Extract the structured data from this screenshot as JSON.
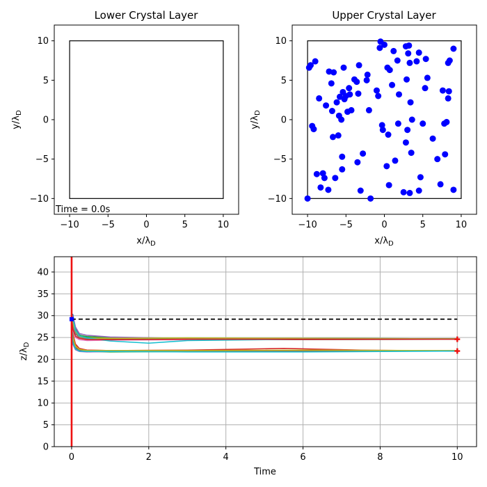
{
  "chart_data": [
    {
      "type": "scatter",
      "title": "Lower Crystal Layer",
      "xlabel": "x/λ",
      "xlabel_sub": "D",
      "ylabel": "y/λ",
      "ylabel_sub": "D",
      "xlim": [
        -12,
        12
      ],
      "ylim": [
        -12,
        12
      ],
      "xticks": [
        -10,
        -5,
        0,
        5,
        10
      ],
      "yticks": [
        -10,
        -5,
        0,
        5,
        10
      ],
      "box": [
        -10,
        10
      ],
      "annotation": "Time = 0.0s",
      "points": []
    },
    {
      "type": "scatter",
      "title": "Upper Crystal Layer",
      "xlabel": "x/λ",
      "xlabel_sub": "D",
      "ylabel": "y/λ",
      "ylabel_sub": "D",
      "xlim": [
        -12,
        12
      ],
      "ylim": [
        -12,
        12
      ],
      "xticks": [
        -10,
        -5,
        0,
        5,
        10
      ],
      "yticks": [
        -10,
        -5,
        0,
        5,
        10
      ],
      "box": [
        -10,
        10
      ],
      "marker_color": "#0000ff",
      "points": [
        [
          -10.0,
          -10.0
        ],
        [
          -9.8,
          6.6
        ],
        [
          -9.6,
          6.9
        ],
        [
          -9.4,
          -0.8
        ],
        [
          -9.2,
          -1.2
        ],
        [
          -9.0,
          7.4
        ],
        [
          -8.8,
          -6.9
        ],
        [
          -8.5,
          2.7
        ],
        [
          -8.3,
          -8.6
        ],
        [
          -8.0,
          -6.8
        ],
        [
          -7.8,
          -7.4
        ],
        [
          -7.6,
          1.8
        ],
        [
          -7.3,
          -8.9
        ],
        [
          -7.2,
          6.1
        ],
        [
          -6.9,
          4.6
        ],
        [
          -6.8,
          1.1
        ],
        [
          -6.7,
          -2.2
        ],
        [
          -6.6,
          6.0
        ],
        [
          -6.4,
          -7.4
        ],
        [
          -6.2,
          2.2
        ],
        [
          -6.0,
          -2.0
        ],
        [
          -5.9,
          0.5
        ],
        [
          -5.8,
          2.9
        ],
        [
          -5.6,
          0.0
        ],
        [
          -5.5,
          -6.3
        ],
        [
          -5.5,
          -4.7
        ],
        [
          -5.4,
          3.5
        ],
        [
          -5.3,
          6.6
        ],
        [
          -5.2,
          2.6
        ],
        [
          -5.0,
          3.0
        ],
        [
          -4.8,
          1.0
        ],
        [
          -4.6,
          4.0
        ],
        [
          -4.5,
          3.2
        ],
        [
          -4.3,
          1.2
        ],
        [
          -3.9,
          5.1
        ],
        [
          -3.6,
          4.8
        ],
        [
          -3.5,
          -5.4
        ],
        [
          -3.4,
          3.3
        ],
        [
          -3.3,
          6.9
        ],
        [
          -3.1,
          -9.0
        ],
        [
          -2.8,
          -4.3
        ],
        [
          -2.3,
          5.0
        ],
        [
          -2.2,
          5.7
        ],
        [
          -2.0,
          1.2
        ],
        [
          -1.8,
          -10.0
        ],
        [
          -1.0,
          3.7
        ],
        [
          -0.8,
          3.0
        ],
        [
          -0.6,
          9.1
        ],
        [
          -0.5,
          9.9
        ],
        [
          -0.3,
          -0.7
        ],
        [
          -0.2,
          -1.3
        ],
        [
          0.0,
          9.5
        ],
        [
          0.3,
          -5.9
        ],
        [
          0.4,
          6.6
        ],
        [
          0.5,
          -1.9
        ],
        [
          0.6,
          -8.3
        ],
        [
          0.7,
          6.3
        ],
        [
          1.0,
          4.4
        ],
        [
          1.2,
          8.7
        ],
        [
          1.4,
          -5.2
        ],
        [
          1.7,
          7.5
        ],
        [
          1.8,
          -0.5
        ],
        [
          1.9,
          3.2
        ],
        [
          2.5,
          -9.2
        ],
        [
          2.8,
          9.3
        ],
        [
          2.8,
          -2.9
        ],
        [
          2.9,
          5.1
        ],
        [
          3.0,
          -1.3
        ],
        [
          3.1,
          8.4
        ],
        [
          3.2,
          9.4
        ],
        [
          3.3,
          -9.3
        ],
        [
          3.3,
          7.2
        ],
        [
          3.4,
          2.2
        ],
        [
          3.5,
          -4.2
        ],
        [
          3.6,
          0.0
        ],
        [
          4.2,
          7.4
        ],
        [
          4.5,
          -9.0
        ],
        [
          4.5,
          8.5
        ],
        [
          4.7,
          -7.3
        ],
        [
          5.0,
          -0.5
        ],
        [
          5.3,
          4.0
        ],
        [
          5.4,
          7.7
        ],
        [
          5.6,
          5.3
        ],
        [
          6.3,
          -2.4
        ],
        [
          6.9,
          -5.0
        ],
        [
          7.3,
          -8.2
        ],
        [
          7.6,
          3.7
        ],
        [
          7.8,
          -0.5
        ],
        [
          7.9,
          -4.4
        ],
        [
          8.1,
          -0.3
        ],
        [
          8.3,
          7.2
        ],
        [
          8.3,
          2.7
        ],
        [
          8.4,
          3.6
        ],
        [
          8.5,
          7.5
        ],
        [
          9.0,
          9.0
        ],
        [
          9.0,
          -8.9
        ]
      ]
    },
    {
      "type": "line",
      "xlabel": "Time",
      "ylabel": "z/λ",
      "ylabel_sub": "D",
      "xlim": [
        -0.45,
        10.5
      ],
      "ylim": [
        0,
        43.5
      ],
      "xticks": [
        0,
        2,
        4,
        6,
        8,
        10
      ],
      "yticks": [
        0,
        5,
        10,
        15,
        20,
        25,
        30,
        35,
        40
      ],
      "grid": true,
      "reference_line": {
        "y": 29.2,
        "x": [
          0,
          10
        ],
        "style": "dashed",
        "color": "#000000"
      },
      "time_marker": {
        "x": 0,
        "color": "#ee1111"
      },
      "start_marker": {
        "x": 0,
        "y": 29.2,
        "color": "#0000ff"
      },
      "end_markers": [
        {
          "x": 10,
          "y": 24.6
        },
        {
          "x": 10,
          "y": 21.9
        }
      ],
      "end_marker_color": "#ee1111",
      "upper_series": [
        {
          "color": "#1f77b4",
          "values": [
            [
              0,
              29.2
            ],
            [
              0.03,
              30.3
            ],
            [
              0.1,
              27.2
            ],
            [
              0.2,
              25.6
            ],
            [
              0.4,
              25.0
            ],
            [
              1,
              24.8
            ],
            [
              3,
              24.6
            ],
            [
              6,
              24.6
            ],
            [
              10,
              24.6
            ]
          ]
        },
        {
          "color": "#ff7f0e",
          "values": [
            [
              0,
              29.2
            ],
            [
              0.03,
              27.8
            ],
            [
              0.1,
              26.5
            ],
            [
              0.2,
              25.3
            ],
            [
              0.4,
              24.8
            ],
            [
              1,
              24.5
            ],
            [
              3,
              24.6
            ],
            [
              6,
              24.7
            ],
            [
              10,
              24.7
            ]
          ]
        },
        {
          "color": "#2ca02c",
          "values": [
            [
              0,
              29.2
            ],
            [
              0.03,
              28.9
            ],
            [
              0.1,
              26.9
            ],
            [
              0.2,
              25.5
            ],
            [
              0.4,
              25.2
            ],
            [
              1,
              25.0
            ],
            [
              3,
              24.8
            ],
            [
              6,
              24.8
            ],
            [
              10,
              24.7
            ]
          ]
        },
        {
          "color": "#9467bd",
          "values": [
            [
              0,
              29.2
            ],
            [
              0.03,
              29.9
            ],
            [
              0.1,
              27.4
            ],
            [
              0.2,
              25.9
            ],
            [
              0.4,
              25.5
            ],
            [
              1,
              25.1
            ],
            [
              3,
              24.8
            ],
            [
              6,
              24.7
            ],
            [
              10,
              24.6
            ]
          ]
        },
        {
          "color": "#8c564b",
          "values": [
            [
              0,
              29.2
            ],
            [
              0.03,
              27.2
            ],
            [
              0.1,
              25.8
            ],
            [
              0.2,
              25.0
            ],
            [
              0.4,
              24.8
            ],
            [
              1,
              24.6
            ],
            [
              3,
              24.5
            ],
            [
              6,
              24.5
            ],
            [
              10,
              24.6
            ]
          ]
        },
        {
          "color": "#e377c2",
          "values": [
            [
              0,
              29.2
            ],
            [
              0.03,
              26.6
            ],
            [
              0.1,
              25.0
            ],
            [
              0.2,
              24.5
            ],
            [
              0.4,
              24.3
            ],
            [
              1,
              24.4
            ],
            [
              3,
              24.5
            ],
            [
              6,
              24.6
            ],
            [
              10,
              24.6
            ]
          ]
        },
        {
          "color": "#bcbd22",
          "values": [
            [
              0,
              29.2
            ],
            [
              0.03,
              28.4
            ],
            [
              0.1,
              26.3
            ],
            [
              0.2,
              25.2
            ],
            [
              0.4,
              24.9
            ],
            [
              1,
              24.8
            ],
            [
              3,
              24.9
            ],
            [
              6,
              24.8
            ],
            [
              10,
              24.7
            ]
          ]
        },
        {
          "color": "#17becf",
          "values": [
            [
              0,
              29.2
            ],
            [
              0.03,
              29.5
            ],
            [
              0.1,
              26.7
            ],
            [
              0.2,
              25.4
            ],
            [
              0.4,
              24.9
            ],
            [
              1,
              24.2
            ],
            [
              2,
              23.7
            ],
            [
              3,
              24.3
            ],
            [
              6,
              24.6
            ],
            [
              10,
              24.6
            ]
          ]
        },
        {
          "color": "#7f7f7f",
          "values": [
            [
              0,
              29.2
            ],
            [
              0.03,
              27.5
            ],
            [
              0.1,
              26.0
            ],
            [
              0.2,
              25.0
            ],
            [
              0.4,
              24.6
            ],
            [
              1,
              24.5
            ],
            [
              3,
              24.6
            ],
            [
              6,
              24.6
            ],
            [
              10,
              24.6
            ]
          ]
        },
        {
          "color": "#d62728",
          "values": [
            [
              0,
              29.2
            ],
            [
              0.03,
              26.9
            ],
            [
              0.1,
              25.3
            ],
            [
              0.2,
              24.8
            ],
            [
              0.4,
              24.5
            ],
            [
              1,
              24.5
            ],
            [
              3,
              24.6
            ],
            [
              6,
              24.6
            ],
            [
              10,
              24.6
            ]
          ]
        }
      ],
      "lower_series": [
        {
          "color": "#1f77b4",
          "values": [
            [
              0,
              29.2
            ],
            [
              0.03,
              24.8
            ],
            [
              0.1,
              22.8
            ],
            [
              0.2,
              22.2
            ],
            [
              0.4,
              21.9
            ],
            [
              1,
              21.9
            ],
            [
              3,
              22.0
            ],
            [
              6,
              22.0
            ],
            [
              10,
              21.9
            ]
          ]
        },
        {
          "color": "#ff7f0e",
          "values": [
            [
              0,
              29.2
            ],
            [
              0.03,
              25.5
            ],
            [
              0.1,
              23.2
            ],
            [
              0.2,
              22.4
            ],
            [
              0.4,
              22.1
            ],
            [
              1,
              22.0
            ],
            [
              3,
              22.1
            ],
            [
              6,
              22.0
            ],
            [
              10,
              22.0
            ]
          ]
        },
        {
          "color": "#2ca02c",
          "values": [
            [
              0,
              29.2
            ],
            [
              0.03,
              24.1
            ],
            [
              0.1,
              22.5
            ],
            [
              0.2,
              22.0
            ],
            [
              0.4,
              21.8
            ],
            [
              1,
              21.7
            ],
            [
              3,
              21.8
            ],
            [
              6,
              21.8
            ],
            [
              10,
              21.9
            ]
          ]
        },
        {
          "color": "#d62728",
          "values": [
            [
              0,
              29.2
            ],
            [
              0.03,
              25.9
            ],
            [
              0.1,
              23.5
            ],
            [
              0.2,
              22.5
            ],
            [
              0.4,
              22.1
            ],
            [
              1,
              22.0
            ],
            [
              3,
              22.1
            ],
            [
              5.5,
              22.5
            ],
            [
              7.5,
              22.1
            ],
            [
              10,
              21.9
            ]
          ]
        },
        {
          "color": "#9467bd",
          "values": [
            [
              0,
              29.2
            ],
            [
              0.03,
              23.5
            ],
            [
              0.1,
              22.2
            ],
            [
              0.2,
              21.8
            ],
            [
              0.4,
              21.7
            ],
            [
              1,
              21.8
            ],
            [
              3,
              21.9
            ],
            [
              6,
              21.9
            ],
            [
              10,
              21.9
            ]
          ]
        },
        {
          "color": "#8c564b",
          "values": [
            [
              0,
              29.2
            ],
            [
              0.03,
              24.4
            ],
            [
              0.1,
              22.7
            ],
            [
              0.2,
              22.1
            ],
            [
              0.4,
              21.9
            ],
            [
              1,
              21.9
            ],
            [
              3,
              21.9
            ],
            [
              6,
              21.9
            ],
            [
              10,
              21.9
            ]
          ]
        },
        {
          "color": "#bcbd22",
          "values": [
            [
              0,
              29.2
            ],
            [
              0.03,
              25.2
            ],
            [
              0.1,
              23.0
            ],
            [
              0.2,
              22.3
            ],
            [
              0.4,
              22.0
            ],
            [
              1,
              22.0
            ],
            [
              3,
              22.0
            ],
            [
              6,
              22.1
            ],
            [
              10,
              22.0
            ]
          ]
        },
        {
          "color": "#17becf",
          "values": [
            [
              0,
              29.2
            ],
            [
              0.03,
              23.9
            ],
            [
              0.1,
              22.4
            ],
            [
              0.2,
              21.9
            ],
            [
              0.4,
              21.8
            ],
            [
              1,
              21.8
            ],
            [
              3,
              21.7
            ],
            [
              6,
              21.7
            ],
            [
              10,
              21.9
            ]
          ]
        }
      ]
    }
  ]
}
